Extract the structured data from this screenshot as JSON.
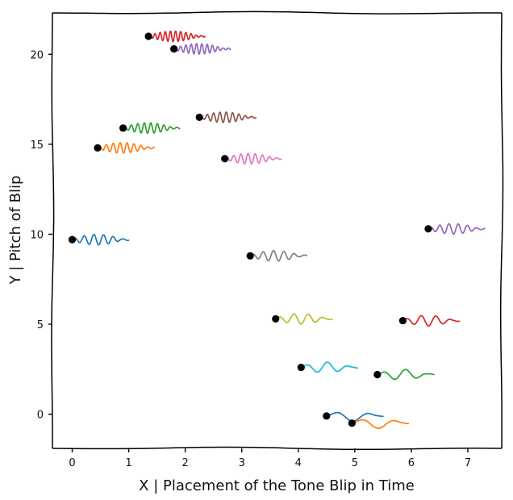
{
  "chart_data": {
    "type": "scatter",
    "title": "",
    "xlabel": "X | Placement of the Tone Blip in Time",
    "ylabel": "Y | Pitch of Blip",
    "xlim": [
      -0.35,
      7.6
    ],
    "ylim": [
      -1.9,
      22.3
    ],
    "xticks": [
      "0",
      "1",
      "2",
      "3",
      "4",
      "5",
      "6",
      "7"
    ],
    "yticks": [
      "0",
      "5",
      "10",
      "15",
      "20"
    ],
    "grid": false,
    "legend": "none",
    "style": "xkcd",
    "blips": [
      {
        "x": 0.0,
        "y": 9.7,
        "color": "#1f77b4"
      },
      {
        "x": 0.45,
        "y": 14.8,
        "color": "#ff7f0e"
      },
      {
        "x": 0.9,
        "y": 15.9,
        "color": "#2ca02c"
      },
      {
        "x": 1.35,
        "y": 21.0,
        "color": "#d62728"
      },
      {
        "x": 1.8,
        "y": 20.3,
        "color": "#9467bd"
      },
      {
        "x": 2.25,
        "y": 16.5,
        "color": "#8c564b"
      },
      {
        "x": 2.7,
        "y": 14.2,
        "color": "#e377c2"
      },
      {
        "x": 3.15,
        "y": 8.8,
        "color": "#7f7f7f"
      },
      {
        "x": 3.6,
        "y": 5.3,
        "color": "#bcbd22"
      },
      {
        "x": 4.05,
        "y": 2.6,
        "color": "#17becf"
      },
      {
        "x": 4.5,
        "y": -0.1,
        "color": "#1f77b4"
      },
      {
        "x": 4.95,
        "y": -0.5,
        "color": "#ff7f0e"
      },
      {
        "x": 5.4,
        "y": 2.2,
        "color": "#2ca02c"
      },
      {
        "x": 5.85,
        "y": 5.2,
        "color": "#d62728"
      },
      {
        "x": 6.3,
        "y": 10.3,
        "color": "#9467bd"
      }
    ]
  }
}
